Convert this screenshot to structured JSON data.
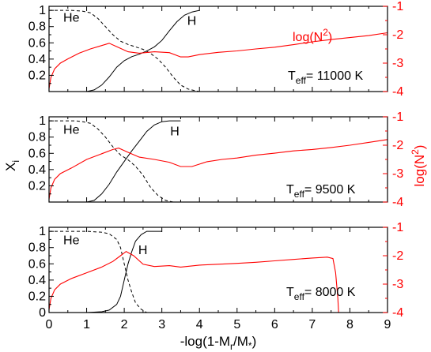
{
  "xlabel": "-log(1-M",
  "xlabel_sub": "r",
  "xlabel_tail": "/M",
  "xlabel_star": "*",
  "xlabel_close": ")",
  "ylabel_left": "X",
  "ylabel_left_sub": "i",
  "ylabel_right": "log(N",
  "ylabel_right_sup": "2",
  "ylabel_right_close": ")",
  "teff_prefix": "T",
  "teff_sub": "eff",
  "he_label": "He",
  "h_label": "H",
  "n2_label": "log(N",
  "n2_label_sup": "2",
  "n2_label_close": ")",
  "colors": {
    "axis": "#000000",
    "n2": "#ff0000"
  },
  "chart_data": [
    {
      "type": "line",
      "teff_value": "= 11000 K",
      "show_n2_label": true,
      "xlim": [
        0,
        9
      ],
      "ylim_left": [
        0,
        1.05
      ],
      "ylim_right": [
        -4,
        -1
      ],
      "x_ticks": [
        0,
        1,
        2,
        3,
        4,
        5,
        6,
        7,
        8,
        9
      ],
      "left_ticks": [
        "0.2",
        "0.4",
        "0.6",
        "0.8",
        "1"
      ],
      "right_ticks": [
        "-4",
        "-3",
        "-2",
        "-1"
      ],
      "series": [
        {
          "id": "He",
          "style": "dashed",
          "axis": "left",
          "points": [
            [
              0,
              1.0
            ],
            [
              0.6,
              1.0
            ],
            [
              0.9,
              0.99
            ],
            [
              1.1,
              0.97
            ],
            [
              1.3,
              0.9
            ],
            [
              1.5,
              0.8
            ],
            [
              1.7,
              0.7
            ],
            [
              1.9,
              0.62
            ],
            [
              2.1,
              0.58
            ],
            [
              2.3,
              0.55
            ],
            [
              2.5,
              0.52
            ],
            [
              2.7,
              0.47
            ],
            [
              2.9,
              0.4
            ],
            [
              3.1,
              0.3
            ],
            [
              3.3,
              0.18
            ],
            [
              3.5,
              0.08
            ],
            [
              3.7,
              0.03
            ],
            [
              3.9,
              0.01
            ],
            [
              4.0,
              0.0
            ]
          ]
        },
        {
          "id": "H",
          "style": "solid",
          "axis": "left",
          "points": [
            [
              1.0,
              0.0
            ],
            [
              1.2,
              0.02
            ],
            [
              1.4,
              0.08
            ],
            [
              1.6,
              0.18
            ],
            [
              1.8,
              0.3
            ],
            [
              2.0,
              0.38
            ],
            [
              2.2,
              0.43
            ],
            [
              2.4,
              0.46
            ],
            [
              2.6,
              0.5
            ],
            [
              2.8,
              0.55
            ],
            [
              3.0,
              0.63
            ],
            [
              3.2,
              0.75
            ],
            [
              3.4,
              0.86
            ],
            [
              3.6,
              0.94
            ],
            [
              3.8,
              0.98
            ],
            [
              4.0,
              1.0
            ]
          ]
        },
        {
          "id": "logN2",
          "style": "solid",
          "axis": "right",
          "points": [
            [
              0.0,
              -3.9
            ],
            [
              0.05,
              -3.5
            ],
            [
              0.15,
              -3.2
            ],
            [
              0.3,
              -3.0
            ],
            [
              0.5,
              -2.85
            ],
            [
              0.8,
              -2.65
            ],
            [
              1.1,
              -2.5
            ],
            [
              1.4,
              -2.38
            ],
            [
              1.6,
              -2.3
            ],
            [
              1.8,
              -2.42
            ],
            [
              2.1,
              -2.6
            ],
            [
              2.4,
              -2.65
            ],
            [
              2.8,
              -2.6
            ],
            [
              3.2,
              -2.63
            ],
            [
              3.5,
              -2.78
            ],
            [
              3.7,
              -2.78
            ],
            [
              4.0,
              -2.7
            ],
            [
              4.5,
              -2.62
            ],
            [
              5.0,
              -2.57
            ],
            [
              5.5,
              -2.5
            ],
            [
              6.0,
              -2.44
            ],
            [
              6.5,
              -2.35
            ],
            [
              7.0,
              -2.25
            ],
            [
              7.5,
              -2.17
            ],
            [
              8.0,
              -2.1
            ],
            [
              8.5,
              -2.03
            ],
            [
              9.0,
              -1.93
            ]
          ]
        }
      ]
    },
    {
      "type": "line",
      "teff_value": "= 9500 K",
      "show_n2_label": false,
      "xlim": [
        0,
        9
      ],
      "ylim_left": [
        0,
        1.05
      ],
      "ylim_right": [
        -4,
        -1
      ],
      "x_ticks": [
        0,
        1,
        2,
        3,
        4,
        5,
        6,
        7,
        8,
        9
      ],
      "left_ticks": [
        "0.2",
        "0.4",
        "0.6",
        "0.8",
        "1"
      ],
      "right_ticks": [
        "-4",
        "-3",
        "-2",
        "-1"
      ],
      "series": [
        {
          "id": "He",
          "style": "dashed",
          "axis": "left",
          "points": [
            [
              0,
              1.0
            ],
            [
              0.7,
              1.0
            ],
            [
              0.9,
              0.99
            ],
            [
              1.1,
              0.97
            ],
            [
              1.3,
              0.9
            ],
            [
              1.5,
              0.8
            ],
            [
              1.7,
              0.68
            ],
            [
              1.9,
              0.58
            ],
            [
              2.1,
              0.52
            ],
            [
              2.3,
              0.44
            ],
            [
              2.5,
              0.33
            ],
            [
              2.7,
              0.18
            ],
            [
              2.9,
              0.08
            ],
            [
              3.1,
              0.02
            ],
            [
              3.3,
              0.0
            ]
          ]
        },
        {
          "id": "H",
          "style": "solid",
          "axis": "left",
          "points": [
            [
              1.0,
              0.0
            ],
            [
              1.2,
              0.02
            ],
            [
              1.4,
              0.1
            ],
            [
              1.6,
              0.22
            ],
            [
              1.8,
              0.37
            ],
            [
              2.0,
              0.5
            ],
            [
              2.2,
              0.63
            ],
            [
              2.4,
              0.75
            ],
            [
              2.6,
              0.87
            ],
            [
              2.8,
              0.95
            ],
            [
              3.0,
              0.99
            ],
            [
              3.2,
              1.0
            ],
            [
              3.5,
              1.0
            ]
          ]
        },
        {
          "id": "logN2",
          "style": "solid",
          "axis": "right",
          "points": [
            [
              0.0,
              -3.9
            ],
            [
              0.05,
              -3.5
            ],
            [
              0.15,
              -3.2
            ],
            [
              0.3,
              -3.0
            ],
            [
              0.6,
              -2.8
            ],
            [
              1.0,
              -2.5
            ],
            [
              1.4,
              -2.3
            ],
            [
              1.7,
              -2.15
            ],
            [
              1.85,
              -2.1
            ],
            [
              2.1,
              -2.25
            ],
            [
              2.4,
              -2.42
            ],
            [
              2.8,
              -2.5
            ],
            [
              3.2,
              -2.6
            ],
            [
              3.5,
              -2.75
            ],
            [
              3.8,
              -2.75
            ],
            [
              4.2,
              -2.58
            ],
            [
              4.6,
              -2.5
            ],
            [
              5.0,
              -2.45
            ],
            [
              5.5,
              -2.35
            ],
            [
              6.0,
              -2.28
            ],
            [
              6.5,
              -2.2
            ],
            [
              7.0,
              -2.15
            ],
            [
              7.5,
              -2.08
            ],
            [
              8.0,
              -2.0
            ],
            [
              8.5,
              -1.9
            ],
            [
              9.0,
              -1.8
            ]
          ]
        }
      ]
    },
    {
      "type": "line",
      "teff_value": "= 8000 K",
      "show_n2_label": false,
      "xlim": [
        0,
        9
      ],
      "ylim_left": [
        0,
        1.05
      ],
      "ylim_right": [
        -4,
        -1
      ],
      "x_ticks": [
        0,
        1,
        2,
        3,
        4,
        5,
        6,
        7,
        8,
        9
      ],
      "left_ticks": [
        "0",
        "0.2",
        "0.4",
        "0.6",
        "0.8",
        "1"
      ],
      "right_ticks": [
        "-4",
        "-3",
        "-2",
        "-1"
      ],
      "series": [
        {
          "id": "He",
          "style": "dashed",
          "axis": "left",
          "points": [
            [
              0,
              1.0
            ],
            [
              1.0,
              1.0
            ],
            [
              1.4,
              0.99
            ],
            [
              1.6,
              0.97
            ],
            [
              1.8,
              0.9
            ],
            [
              1.9,
              0.8
            ],
            [
              2.0,
              0.6
            ],
            [
              2.1,
              0.4
            ],
            [
              2.2,
              0.25
            ],
            [
              2.3,
              0.12
            ],
            [
              2.45,
              0.04
            ],
            [
              2.6,
              0.0
            ]
          ]
        },
        {
          "id": "H",
          "style": "solid",
          "axis": "left",
          "points": [
            [
              1.0,
              0.0
            ],
            [
              1.4,
              0.01
            ],
            [
              1.6,
              0.03
            ],
            [
              1.8,
              0.1
            ],
            [
              1.9,
              0.2
            ],
            [
              2.0,
              0.4
            ],
            [
              2.1,
              0.6
            ],
            [
              2.2,
              0.75
            ],
            [
              2.3,
              0.88
            ],
            [
              2.45,
              0.96
            ],
            [
              2.6,
              1.0
            ],
            [
              3.0,
              1.0
            ]
          ]
        },
        {
          "id": "logN2",
          "style": "solid",
          "axis": "right",
          "points": [
            [
              0.0,
              -3.9
            ],
            [
              0.05,
              -3.5
            ],
            [
              0.15,
              -3.2
            ],
            [
              0.3,
              -3.0
            ],
            [
              0.6,
              -2.8
            ],
            [
              1.0,
              -2.6
            ],
            [
              1.4,
              -2.4
            ],
            [
              1.7,
              -2.2
            ],
            [
              1.9,
              -2.0
            ],
            [
              2.05,
              -1.85
            ],
            [
              2.25,
              -2.0
            ],
            [
              2.5,
              -2.3
            ],
            [
              2.8,
              -2.38
            ],
            [
              3.2,
              -2.35
            ],
            [
              3.5,
              -2.4
            ],
            [
              4.0,
              -2.33
            ],
            [
              4.5,
              -2.3
            ],
            [
              5.0,
              -2.27
            ],
            [
              5.5,
              -2.23
            ],
            [
              6.0,
              -2.18
            ],
            [
              6.5,
              -2.13
            ],
            [
              7.0,
              -2.08
            ],
            [
              7.4,
              -2.05
            ],
            [
              7.55,
              -2.1
            ],
            [
              7.62,
              -2.6
            ],
            [
              7.68,
              -3.5
            ],
            [
              7.7,
              -4.0
            ]
          ]
        }
      ]
    }
  ]
}
